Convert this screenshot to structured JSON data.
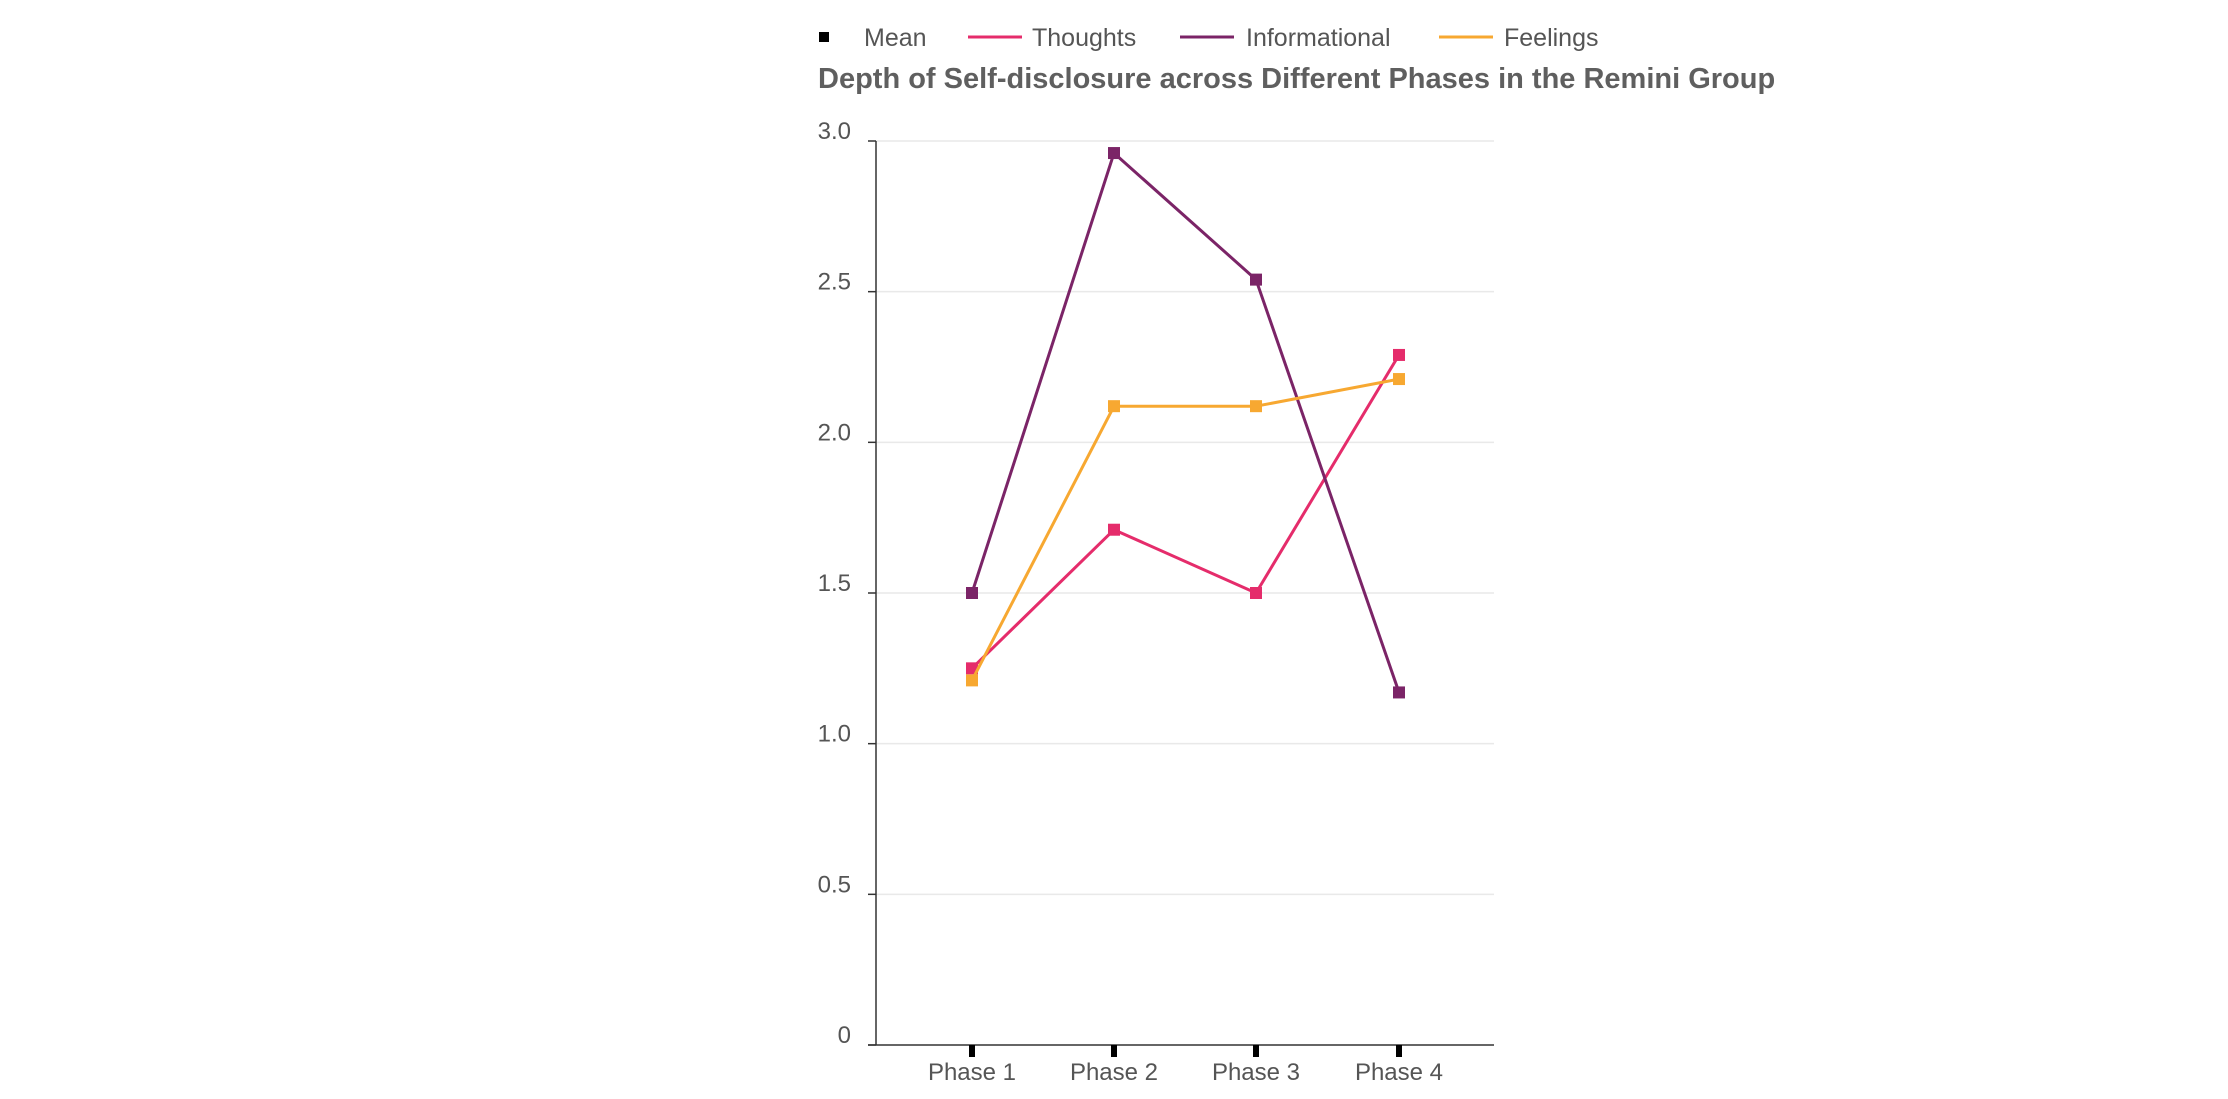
{
  "chart_data": {
    "type": "line",
    "title": "Depth of Self-disclosure across Different Phases in the Remini Group",
    "xlabel": "",
    "ylabel": "",
    "categories": [
      "Phase 1",
      "Phase 2",
      "Phase 3",
      "Phase 4"
    ],
    "ylim": [
      0,
      3.0
    ],
    "yticks": [
      "0",
      "0.5",
      "1.0",
      "1.5",
      "2.0",
      "2.5",
      "3.0"
    ],
    "grid": true,
    "legend": {
      "placement": "top",
      "items": [
        {
          "label": "Mean",
          "marker": "square",
          "color": "#000000"
        },
        {
          "label": "Thoughts",
          "marker": "line",
          "color": "#e52c6b"
        },
        {
          "label": "Informational",
          "marker": "line",
          "color": "#7b2467"
        },
        {
          "label": "Feelings",
          "marker": "line",
          "color": "#f7a831"
        }
      ]
    },
    "series": [
      {
        "name": "Thoughts",
        "color": "#e52c6b",
        "values": [
          1.25,
          1.71,
          1.5,
          2.29
        ]
      },
      {
        "name": "Informational",
        "color": "#7b2467",
        "values": [
          1.5,
          2.96,
          2.54,
          1.17
        ]
      },
      {
        "name": "Feelings",
        "color": "#f7a831",
        "values": [
          1.21,
          2.12,
          2.12,
          2.21
        ]
      }
    ]
  }
}
